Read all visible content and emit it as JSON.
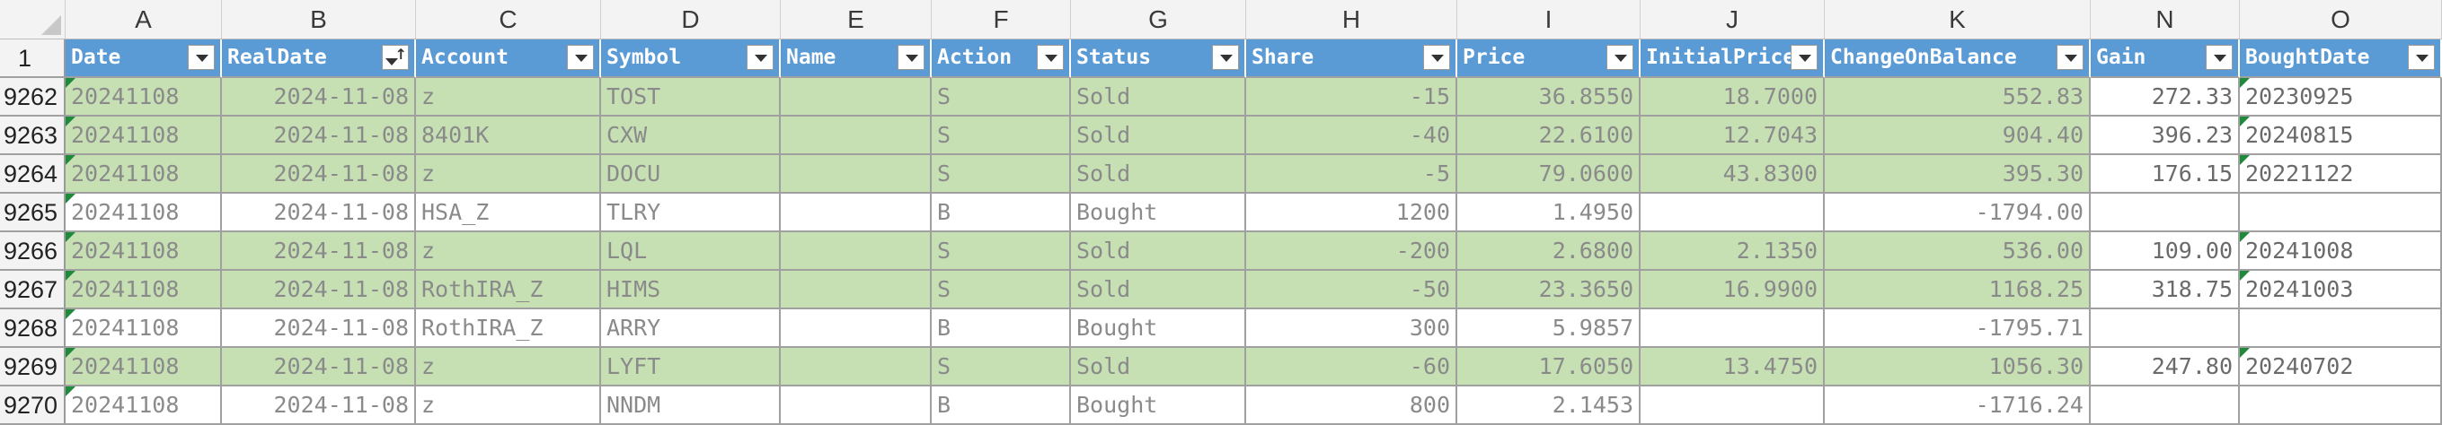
{
  "corner": "",
  "columns": [
    "A",
    "B",
    "C",
    "D",
    "E",
    "F",
    "G",
    "H",
    "I",
    "J",
    "K",
    "N",
    "O"
  ],
  "row_header_label": "1",
  "headers": [
    "Date",
    "RealDate",
    "Account",
    "Symbol",
    "Name",
    "Action",
    "Status",
    "Share",
    "Price",
    "InitialPrice",
    "ChangeOnBalance",
    "Gain",
    "BoughtDate"
  ],
  "rows": [
    {
      "num": "9262",
      "date": "20241108",
      "real": "2024-11-08",
      "account": "z",
      "symbol": "TOST",
      "name": "",
      "action": "S",
      "status": "Sold",
      "share": "-15",
      "price": "36.8550",
      "initial": "18.7000",
      "change": "552.83",
      "gain": "272.33",
      "bought": "20230925"
    },
    {
      "num": "9263",
      "date": "20241108",
      "real": "2024-11-08",
      "account": "8401K",
      "symbol": "CXW",
      "name": "",
      "action": "S",
      "status": "Sold",
      "share": "-40",
      "price": "22.6100",
      "initial": "12.7043",
      "change": "904.40",
      "gain": "396.23",
      "bought": "20240815"
    },
    {
      "num": "9264",
      "date": "20241108",
      "real": "2024-11-08",
      "account": "z",
      "symbol": "DOCU",
      "name": "",
      "action": "S",
      "status": "Sold",
      "share": "-5",
      "price": "79.0600",
      "initial": "43.8300",
      "change": "395.30",
      "gain": "176.15",
      "bought": "20221122"
    },
    {
      "num": "9265",
      "date": "20241108",
      "real": "2024-11-08",
      "account": "HSA_Z",
      "symbol": "TLRY",
      "name": "",
      "action": "B",
      "status": "Bought",
      "share": "1200",
      "price": "1.4950",
      "initial": "",
      "change": "-1794.00",
      "gain": "",
      "bought": ""
    },
    {
      "num": "9266",
      "date": "20241108",
      "real": "2024-11-08",
      "account": "z",
      "symbol": "LQL",
      "name": "",
      "action": "S",
      "status": "Sold",
      "share": "-200",
      "price": "2.6800",
      "initial": "2.1350",
      "change": "536.00",
      "gain": "109.00",
      "bought": "20241008"
    },
    {
      "num": "9267",
      "date": "20241108",
      "real": "2024-11-08",
      "account": "RothIRA_Z",
      "symbol": "HIMS",
      "name": "",
      "action": "S",
      "status": "Sold",
      "share": "-50",
      "price": "23.3650",
      "initial": "16.9900",
      "change": "1168.25",
      "gain": "318.75",
      "bought": "20241003"
    },
    {
      "num": "9268",
      "date": "20241108",
      "real": "2024-11-08",
      "account": "RothIRA_Z",
      "symbol": "ARRY",
      "name": "",
      "action": "B",
      "status": "Bought",
      "share": "300",
      "price": "5.9857",
      "initial": "",
      "change": "-1795.71",
      "gain": "",
      "bought": ""
    },
    {
      "num": "9269",
      "date": "20241108",
      "real": "2024-11-08",
      "account": "z",
      "symbol": "LYFT",
      "name": "",
      "action": "S",
      "status": "Sold",
      "share": "-60",
      "price": "17.6050",
      "initial": "13.4750",
      "change": "1056.30",
      "gain": "247.80",
      "bought": "20240702"
    },
    {
      "num": "9270",
      "date": "20241108",
      "real": "2024-11-08",
      "account": "z",
      "symbol": "NNDM",
      "name": "",
      "action": "B",
      "status": "Bought",
      "share": "800",
      "price": "2.1453",
      "initial": "",
      "change": "-1716.24",
      "gain": "",
      "bought": ""
    }
  ],
  "colors": {
    "table_header": "#5b9bd5",
    "sold_fill": "#c6e0b4",
    "grid": "#a0a0a0",
    "error_flag": "#1e8a3a"
  },
  "icons": {
    "filter": "filter-dropdown-icon",
    "sort": "sort-ascending-icon",
    "flag": "error-indicator-icon"
  }
}
